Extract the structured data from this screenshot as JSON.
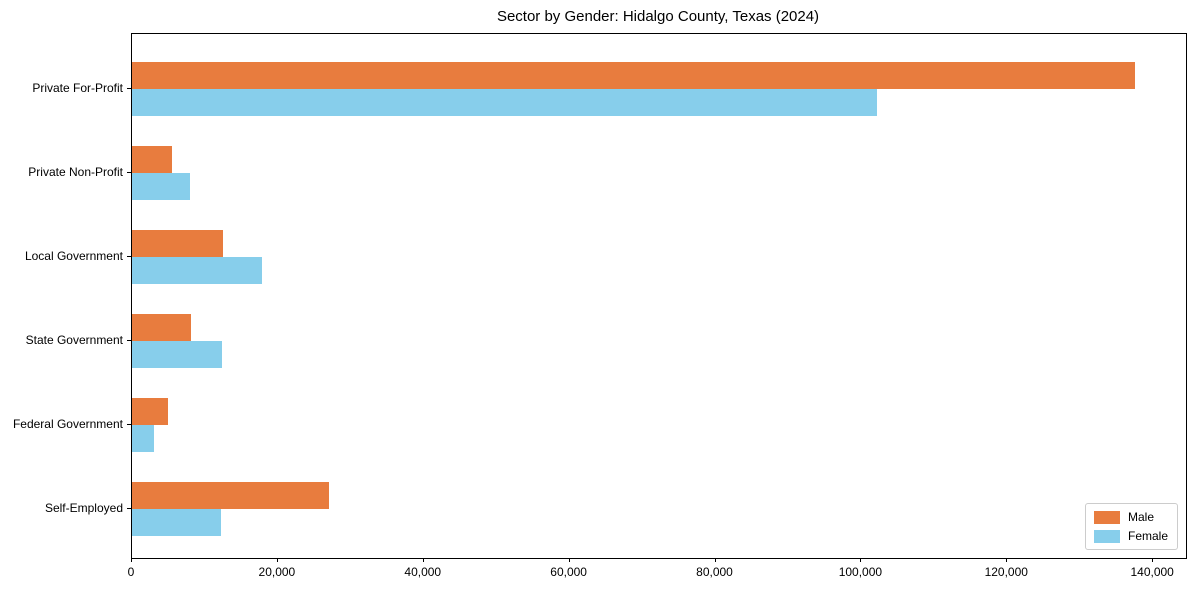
{
  "chart_data": {
    "type": "bar",
    "orientation": "horizontal",
    "title": "Sector by Gender: Hidalgo County, Texas (2024)",
    "categories": [
      "Private For-Profit",
      "Private Non-Profit",
      "Local Government",
      "State Government",
      "Federal Government",
      "Self-Employed"
    ],
    "series": [
      {
        "name": "Male",
        "color": "#e87c3e",
        "values": [
          137500,
          5500,
          12500,
          8100,
          4900,
          27000
        ]
      },
      {
        "name": "Female",
        "color": "#87ceeb",
        "values": [
          102200,
          8000,
          17800,
          12300,
          3000,
          12200
        ]
      }
    ],
    "xlabel": "",
    "ylabel": "",
    "xlim": [
      0,
      144500
    ],
    "x_ticks": [
      0,
      20000,
      40000,
      60000,
      80000,
      100000,
      120000,
      140000
    ],
    "x_tick_labels": [
      "0",
      "20,000",
      "40,000",
      "60,000",
      "80,000",
      "100,000",
      "120,000",
      "140,000"
    ],
    "legend_position": "lower right",
    "grid": false,
    "background_color": "#ffffff",
    "spine_color": "#000000"
  }
}
